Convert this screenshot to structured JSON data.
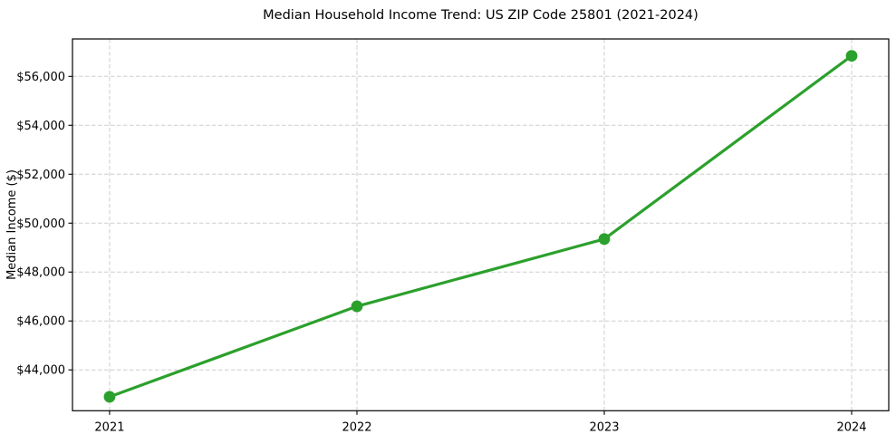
{
  "chart_data": {
    "type": "line",
    "title": "Median Household Income Trend: US ZIP Code 25801 (2021-2024)",
    "xlabel": "",
    "ylabel": "Median Income ($)",
    "x": [
      2021,
      2022,
      2023,
      2024
    ],
    "values": [
      42900,
      46600,
      49350,
      56840
    ],
    "xticks": [
      {
        "value": 2021,
        "label": "2021"
      },
      {
        "value": 2022,
        "label": "2022"
      },
      {
        "value": 2023,
        "label": "2023"
      },
      {
        "value": 2024,
        "label": "2024"
      }
    ],
    "yticks": [
      {
        "value": 44000,
        "label": "$44,000"
      },
      {
        "value": 46000,
        "label": "$46,000"
      },
      {
        "value": 48000,
        "label": "$48,000"
      },
      {
        "value": 50000,
        "label": "$50,000"
      },
      {
        "value": 52000,
        "label": "$52,000"
      },
      {
        "value": 54000,
        "label": "$54,000"
      },
      {
        "value": 56000,
        "label": "$56,000"
      }
    ],
    "xlim": [
      2020.85,
      2024.15
    ],
    "ylim": [
      42330,
      57530
    ],
    "grid": true,
    "grid_style": "dashed",
    "legend_visible": false,
    "line_color": "#2ca02c",
    "marker": "circle",
    "grid_color": "#cdcdcd",
    "axis_color": "#000000",
    "text_color": "#000000",
    "background_color": "#ffffff"
  }
}
